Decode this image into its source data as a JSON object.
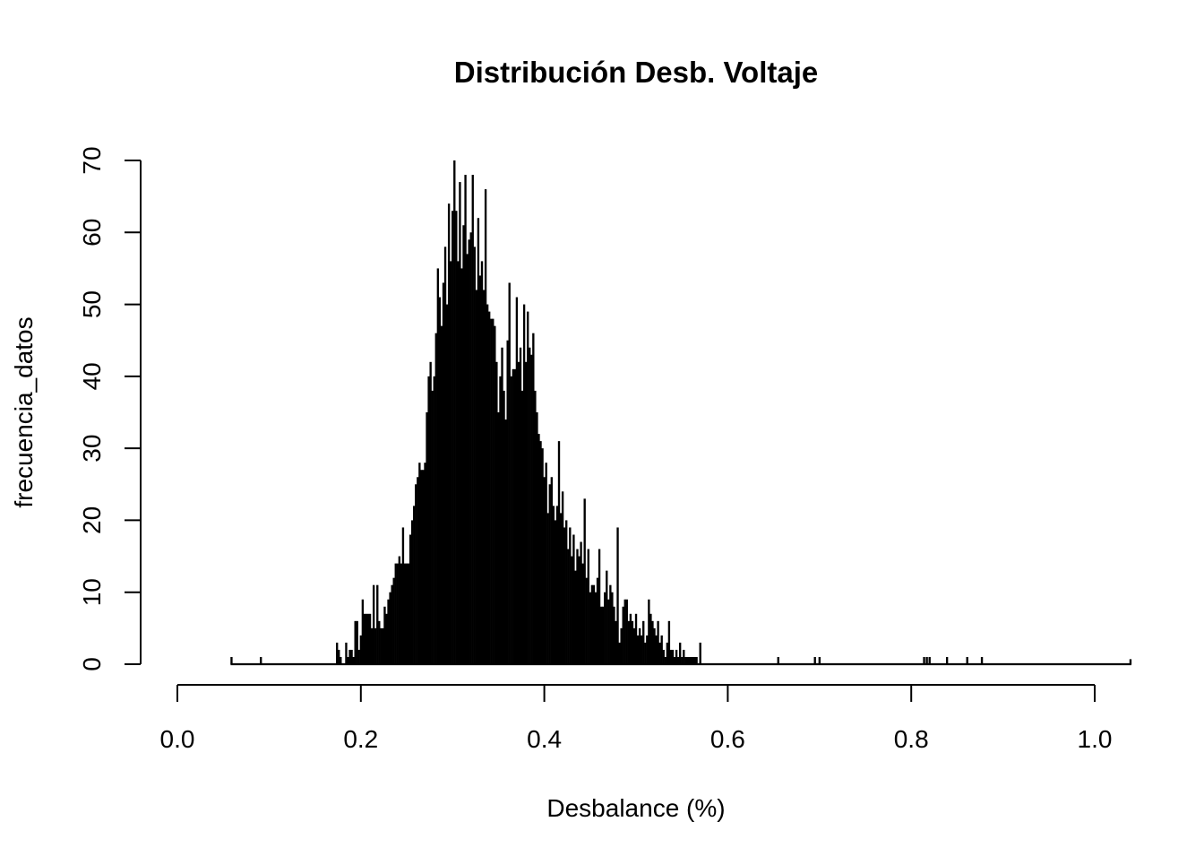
{
  "chart_data": {
    "type": "bar",
    "title": "Distribución Desb. Voltaje",
    "xlabel": "Desbalance (%)",
    "ylabel": "frecuencia_datos",
    "xlim": [
      0.0,
      1.0
    ],
    "ylim": [
      0,
      70
    ],
    "xticks": [
      "0.0",
      "0.2",
      "0.4",
      "0.6",
      "0.8",
      "1.0"
    ],
    "yticks": [
      "0",
      "10",
      "20",
      "30",
      "40",
      "50",
      "60",
      "70"
    ],
    "grid": false,
    "main_start": 0.174,
    "main_step": 0.002,
    "main_values": [
      3,
      2,
      1,
      0,
      0,
      3,
      1,
      2,
      2,
      1,
      6,
      6,
      2,
      4,
      9,
      7,
      7,
      7,
      7,
      5,
      11,
      5,
      11,
      6,
      5,
      5,
      8,
      7,
      9,
      10,
      11,
      12,
      14,
      14,
      15,
      14,
      19,
      14,
      14,
      14,
      18,
      20,
      22,
      25,
      26,
      28,
      27,
      27,
      28,
      35,
      40,
      42,
      38,
      40,
      46,
      55,
      51,
      47,
      53,
      58,
      50,
      64,
      56,
      63,
      70,
      63,
      56,
      67,
      55,
      61,
      68,
      57,
      59,
      60,
      68,
      58,
      52,
      62,
      54,
      56,
      52,
      66,
      50,
      49,
      48,
      48,
      47,
      42,
      35,
      40,
      44,
      38,
      34,
      45,
      53,
      40,
      41,
      41,
      51,
      42,
      44,
      38,
      50,
      42,
      49,
      44,
      43,
      46,
      38,
      35,
      32,
      31,
      30,
      26,
      28,
      21,
      25,
      26,
      22,
      20,
      22,
      31,
      21,
      24,
      19,
      20,
      16,
      19,
      15,
      18,
      13,
      16,
      15,
      17,
      14,
      23,
      12,
      16,
      10,
      11,
      11,
      10,
      12,
      16,
      8,
      8,
      10,
      13,
      9,
      11,
      10,
      8,
      6,
      19,
      3,
      5,
      8,
      9,
      9,
      6,
      7,
      6,
      5,
      7,
      4,
      5,
      4,
      6,
      3,
      4,
      9,
      7,
      6,
      5,
      4,
      6,
      3,
      4,
      2,
      1,
      3,
      6,
      2,
      2,
      1,
      2,
      1,
      3,
      1,
      2,
      1,
      1,
      1,
      1,
      1,
      1,
      1,
      0,
      3
    ],
    "outliers": [
      {
        "x": 0.059,
        "y": 1
      },
      {
        "x": 0.091,
        "y": 1
      },
      {
        "x": 0.655,
        "y": 1
      },
      {
        "x": 0.695,
        "y": 1
      },
      {
        "x": 0.7,
        "y": 1
      },
      {
        "x": 0.814,
        "y": 1
      },
      {
        "x": 0.817,
        "y": 1
      },
      {
        "x": 0.82,
        "y": 1
      },
      {
        "x": 0.839,
        "y": 1
      },
      {
        "x": 0.861,
        "y": 1
      },
      {
        "x": 0.877,
        "y": 1
      },
      {
        "x": 1.039,
        "y": 0.7
      }
    ]
  }
}
